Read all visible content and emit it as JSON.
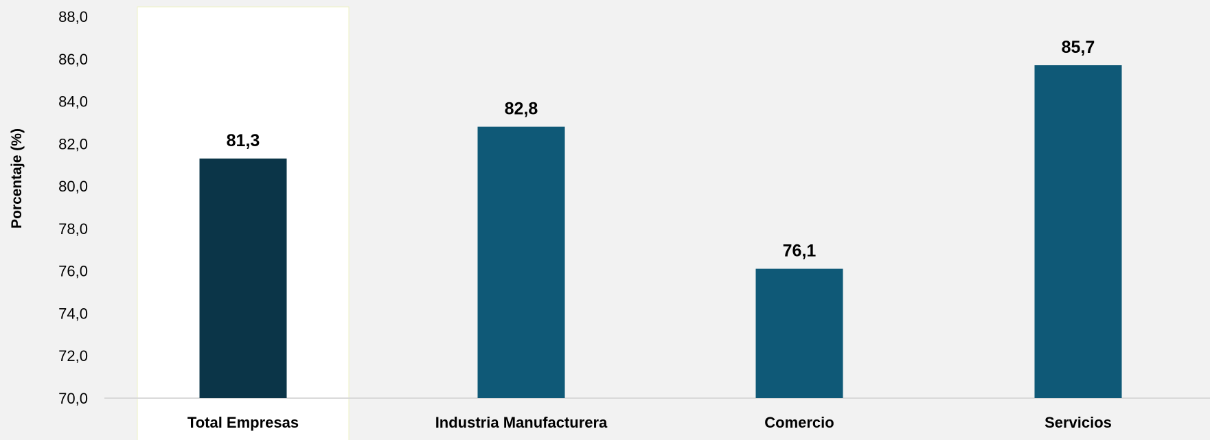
{
  "chart_data": {
    "type": "bar",
    "title": "",
    "xlabel": "",
    "ylabel": "Porcentaje (%)",
    "categories": [
      "Total Empresas",
      "Industria Manufacturera",
      "Comercio",
      "Servicios"
    ],
    "values": [
      81.3,
      82.8,
      76.1,
      85.7
    ],
    "value_labels": [
      "81,3",
      "82,8",
      "76,1",
      "85,7"
    ],
    "ylim": [
      70,
      88
    ],
    "yticks": [
      70,
      72,
      74,
      76,
      78,
      80,
      82,
      84,
      86,
      88
    ],
    "ytick_labels": [
      "70,0",
      "72,0",
      "74,0",
      "76,0",
      "78,0",
      "80,0",
      "82,0",
      "84,0",
      "86,0",
      "88,0"
    ],
    "grid": false,
    "highlighted_category": "Total Empresas",
    "colors": {
      "background": "#f2f2f2",
      "highlight_panel": "#ffffff",
      "highlight_panel_border": "#eef2c4",
      "bar_highlight": "#0b3548",
      "bar": "#0f5977",
      "axis": "#d9d9d9"
    }
  }
}
